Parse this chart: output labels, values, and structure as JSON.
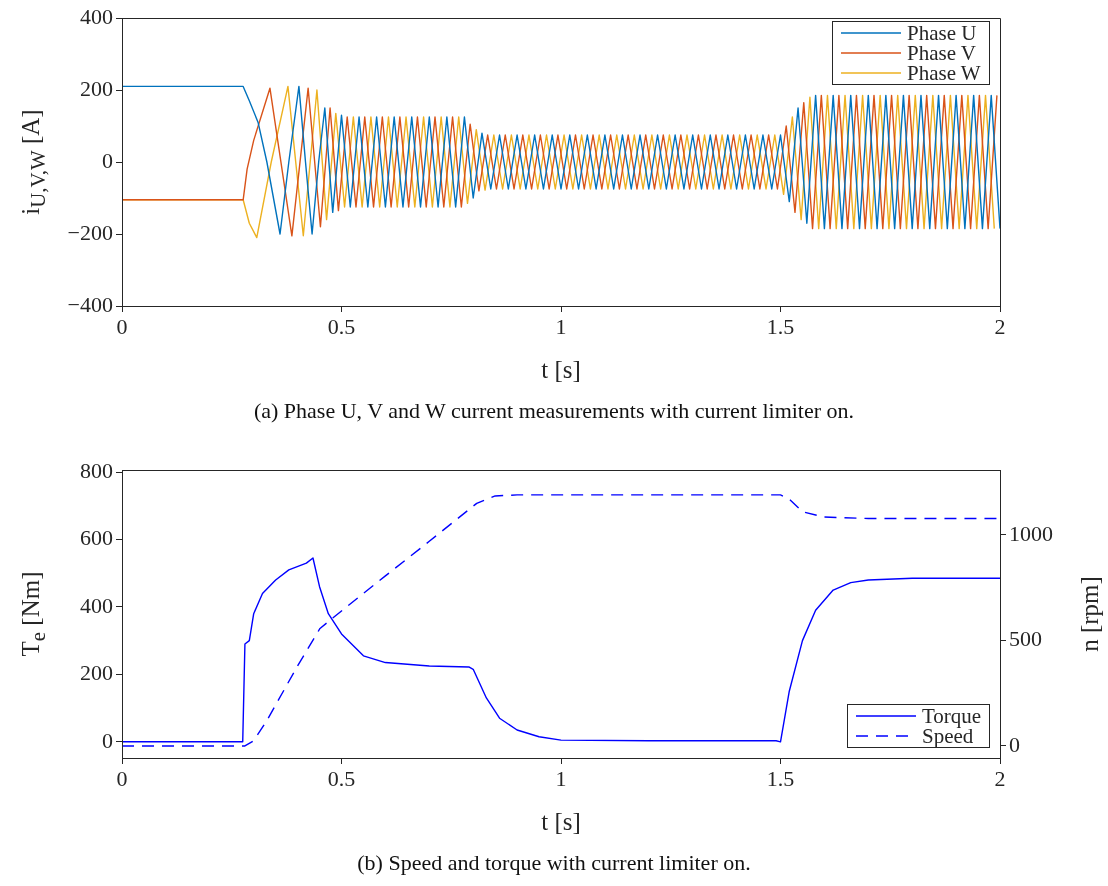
{
  "chart_data": [
    {
      "type": "line",
      "xlabel": "t [s]",
      "ylabel": "i$_{U,V,W}$ [A]",
      "xlim": [
        0,
        2
      ],
      "xticks": [
        0,
        0.5,
        1,
        1.5,
        2
      ],
      "ylim": [
        -400,
        400
      ],
      "yticks": [
        -400,
        -200,
        0,
        200,
        400
      ],
      "grid": false,
      "legend": "top right",
      "marker": "none",
      "annotations": [
        "(a) Phase U, V and W current measurements with current limiter on."
      ],
      "series": [
        {
          "name": "Phase U",
          "color": "#0072bd",
          "x": [
            0,
            0.276,
            0.29,
            0.31,
            0.33,
            0.36,
            0.38,
            0.403,
            0.418,
            0.433,
            0.448,
            0.462,
            0.48,
            0.5,
            0.52,
            0.54,
            0.56,
            0.58,
            0.6,
            0.62,
            0.64,
            0.66,
            0.68,
            0.7,
            0.72,
            0.74,
            0.76,
            0.78,
            0.8,
            0.82,
            0.84,
            0.86,
            0.88,
            0.9,
            0.92,
            0.94,
            0.96,
            0.98,
            1,
            1.02,
            1.04,
            1.06,
            1.08,
            1.1,
            1.12,
            1.14,
            1.16,
            1.18,
            1.2,
            1.22,
            1.24,
            1.26,
            1.28,
            1.3,
            1.32,
            1.34,
            1.36,
            1.38,
            1.4,
            1.42,
            1.44,
            1.46,
            1.48,
            1.5,
            1.52,
            1.54,
            1.56,
            1.58,
            1.6,
            1.62,
            1.64,
            1.66,
            1.68,
            1.7,
            1.72,
            1.74,
            1.76,
            1.78,
            1.8,
            1.82,
            1.84,
            1.86,
            1.88,
            1.9,
            1.92,
            1.94,
            1.96,
            1.98,
            2
          ],
          "values": [
            210,
            210,
            170,
            110,
            0,
            -200,
            0,
            210,
            0,
            -200,
            0,
            150,
            -140,
            130,
            -125,
            125,
            -125,
            125,
            -125,
            125,
            -125,
            125,
            -125,
            125,
            -125,
            125,
            -125,
            125,
            -100,
            80,
            -75,
            75,
            -75,
            75,
            -75,
            75,
            -75,
            75,
            -75,
            75,
            -75,
            75,
            -75,
            75,
            -75,
            75,
            -75,
            75,
            -75,
            75,
            -75,
            75,
            -75,
            75,
            -75,
            75,
            -75,
            75,
            -75,
            75,
            -75,
            75,
            -75,
            75,
            -110,
            150,
            -170,
            185,
            -185,
            185,
            -185,
            185,
            -185,
            185,
            -185,
            185,
            -185,
            185,
            -185,
            185,
            -185,
            185,
            -185,
            185,
            -185,
            185,
            -185,
            185,
            -185
          ]
        },
        {
          "name": "Phase V",
          "color": "#d95319",
          "x": [
            0,
            0.276,
            0.285,
            0.3,
            0.337,
            0.387,
            0.424,
            0.452,
            0.474,
            0.493,
            0.513,
            0.533,
            0.553,
            0.573,
            0.593,
            0.613,
            0.633,
            0.653,
            0.673,
            0.693,
            0.713,
            0.733,
            0.753,
            0.773,
            0.793,
            0.813,
            0.833,
            0.853,
            0.873,
            0.893,
            0.913,
            0.933,
            0.953,
            0.973,
            0.993,
            1.013,
            1.033,
            1.053,
            1.073,
            1.093,
            1.113,
            1.133,
            1.153,
            1.173,
            1.193,
            1.213,
            1.233,
            1.253,
            1.273,
            1.293,
            1.313,
            1.333,
            1.353,
            1.373,
            1.393,
            1.413,
            1.433,
            1.453,
            1.473,
            1.493,
            1.513,
            1.533,
            1.553,
            1.573,
            1.593,
            1.613,
            1.633,
            1.653,
            1.673,
            1.693,
            1.713,
            1.733,
            1.753,
            1.773,
            1.793,
            1.813,
            1.833,
            1.853,
            1.873,
            1.893,
            1.913,
            1.933,
            1.953,
            1.973,
            1.993
          ],
          "values": [
            -105,
            -105,
            -20,
            60,
            205,
            -205,
            205,
            -180,
            150,
            -135,
            125,
            -125,
            125,
            -125,
            125,
            -125,
            125,
            -125,
            125,
            -125,
            125,
            -125,
            125,
            -125,
            105,
            -80,
            75,
            -75,
            75,
            -75,
            75,
            -75,
            75,
            -75,
            75,
            -75,
            75,
            -75,
            75,
            -75,
            75,
            -75,
            75,
            -75,
            75,
            -75,
            75,
            -75,
            75,
            -75,
            75,
            -75,
            75,
            -75,
            75,
            -75,
            75,
            -75,
            75,
            -75,
            100,
            -140,
            165,
            -185,
            185,
            -185,
            185,
            -185,
            185,
            -185,
            185,
            -185,
            185,
            -185,
            185,
            -185,
            185,
            -185,
            185,
            -185,
            185,
            -185,
            185,
            -185,
            185
          ]
        },
        {
          "name": "Phase W",
          "color": "#edb120",
          "x": [
            0,
            0.276,
            0.29,
            0.307,
            0.34,
            0.378,
            0.413,
            0.444,
            0.466,
            0.487,
            0.507,
            0.527,
            0.547,
            0.567,
            0.587,
            0.607,
            0.627,
            0.647,
            0.667,
            0.687,
            0.707,
            0.727,
            0.747,
            0.767,
            0.787,
            0.807,
            0.827,
            0.847,
            0.867,
            0.887,
            0.907,
            0.927,
            0.947,
            0.967,
            0.987,
            1.007,
            1.027,
            1.047,
            1.067,
            1.087,
            1.107,
            1.127,
            1.147,
            1.167,
            1.187,
            1.207,
            1.227,
            1.247,
            1.267,
            1.287,
            1.307,
            1.327,
            1.347,
            1.367,
            1.387,
            1.407,
            1.427,
            1.447,
            1.467,
            1.487,
            1.507,
            1.527,
            1.547,
            1.567,
            1.587,
            1.607,
            1.627,
            1.647,
            1.667,
            1.687,
            1.707,
            1.727,
            1.747,
            1.767,
            1.787,
            1.807,
            1.827,
            1.847,
            1.867,
            1.887,
            1.907,
            1.927,
            1.947,
            1.967,
            1.987
          ],
          "values": [
            -105,
            -105,
            -170,
            -210,
            0,
            210,
            -205,
            200,
            -160,
            135,
            -125,
            125,
            -125,
            125,
            -125,
            125,
            -125,
            125,
            -125,
            125,
            -125,
            125,
            -125,
            125,
            -115,
            90,
            -78,
            75,
            -75,
            75,
            -75,
            75,
            -75,
            75,
            -75,
            75,
            -75,
            75,
            -75,
            75,
            -75,
            75,
            -75,
            75,
            -75,
            75,
            -75,
            75,
            -75,
            75,
            -75,
            75,
            -75,
            75,
            -75,
            75,
            -75,
            75,
            -75,
            75,
            -90,
            125,
            -160,
            180,
            -185,
            185,
            -185,
            185,
            -185,
            185,
            -185,
            185,
            -185,
            185,
            -185,
            185,
            -185,
            185,
            -185,
            185,
            -185,
            185,
            -185,
            185,
            -185
          ]
        }
      ]
    },
    {
      "type": "line",
      "xlabel": "t [s]",
      "ylabel": "T$_{e}$ [Nm]",
      "y2label": "n [rpm]",
      "xlim": [
        0,
        2
      ],
      "xticks": [
        0,
        0.5,
        1,
        1.5,
        2
      ],
      "ylim": [
        -48,
        806
      ],
      "yticks": [
        0,
        200,
        400,
        600,
        800
      ],
      "y2lim": [
        -57,
        1308
      ],
      "y2ticks": [
        0,
        500,
        1000
      ],
      "grid": false,
      "legend": "bottom right",
      "marker": "none",
      "annotations": [
        "(b) Speed and torque with current limiter on."
      ],
      "series": [
        {
          "name": "Torque",
          "color": "#0000ff",
          "line_style": "solid",
          "x": [
            0,
            0.275,
            0.28,
            0.29,
            0.3,
            0.32,
            0.35,
            0.38,
            0.42,
            0.435,
            0.45,
            0.47,
            0.5,
            0.55,
            0.6,
            0.7,
            0.79,
            0.8,
            0.83,
            0.86,
            0.9,
            0.95,
            1,
            1.2,
            1.49,
            1.5,
            1.52,
            1.55,
            1.58,
            1.62,
            1.66,
            1.7,
            1.8,
            2
          ],
          "values": [
            0,
            0,
            290,
            300,
            380,
            440,
            480,
            510,
            530,
            545,
            460,
            380,
            320,
            255,
            235,
            225,
            222,
            215,
            130,
            70,
            35,
            15,
            5,
            3,
            3,
            0,
            150,
            300,
            390,
            450,
            472,
            480,
            485,
            485
          ]
        },
        {
          "name": "Speed",
          "color": "#0000ff",
          "line_style": "dashed",
          "axis": "y2",
          "x": [
            0,
            0.28,
            0.3,
            0.33,
            0.4,
            0.451,
            0.5,
            0.6,
            0.7,
            0.808,
            0.85,
            0.9,
            1.5,
            1.52,
            1.55,
            1.6,
            1.7,
            2
          ],
          "values": [
            0,
            0,
            25,
            120,
            380,
            557,
            640,
            806,
            970,
            1150,
            1185,
            1190,
            1190,
            1170,
            1110,
            1085,
            1078,
            1078
          ]
        }
      ]
    }
  ]
}
